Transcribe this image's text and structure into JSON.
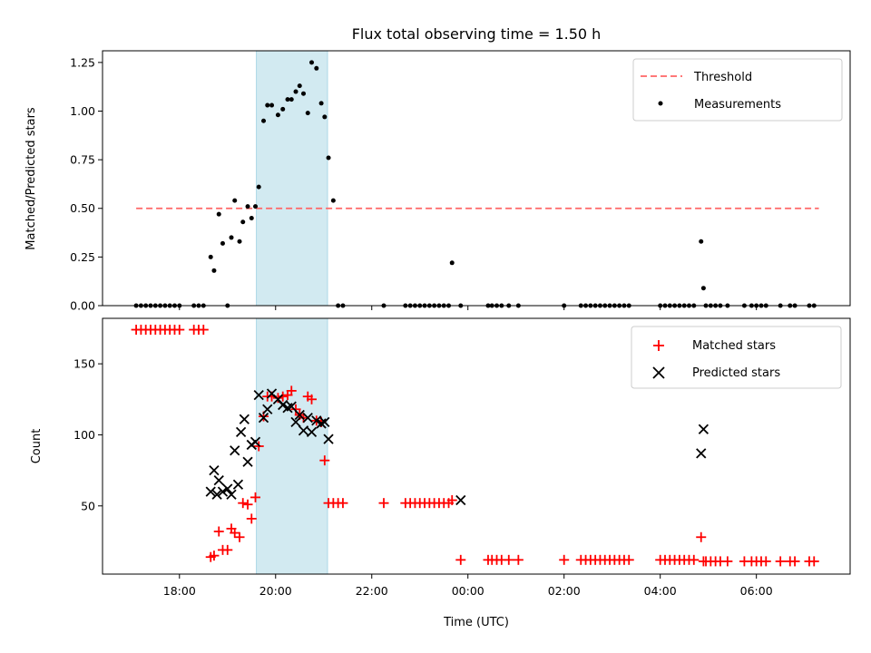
{
  "chart_data": [
    {
      "type": "scatter",
      "title": "Flux total observing time = 1.50 h",
      "xlabel": "",
      "ylabel": "Matched/Predicted stars",
      "xlim": [
        16.4,
        31.95
      ],
      "ylim": [
        0,
        1.31
      ],
      "yticks": [
        0.0,
        0.25,
        0.5,
        0.75,
        1.0,
        1.25
      ],
      "ytick_labels": [
        "0.00",
        "0.25",
        "0.50",
        "0.75",
        "1.00",
        "1.25"
      ],
      "shaded_interval": [
        19.6,
        21.08
      ],
      "shade_color": "#add8e6",
      "legend": "top-right",
      "threshold": {
        "name": "Threshold",
        "value": 0.5,
        "x_range": [
          17.1,
          31.3
        ],
        "color": "#ff6666"
      },
      "series": [
        {
          "name": "Measurements",
          "marker": "dot",
          "color": "#000000",
          "x": [
            17.1,
            17.2,
            17.3,
            17.4,
            17.5,
            17.6,
            17.7,
            17.8,
            17.9,
            18.0,
            18.3,
            18.4,
            18.5,
            18.65,
            18.72,
            18.82,
            18.9,
            19.0,
            19.08,
            19.15,
            19.25,
            19.32,
            19.42,
            19.5,
            19.58,
            19.65,
            19.75,
            19.83,
            19.92,
            20.05,
            20.15,
            20.25,
            20.33,
            20.42,
            20.5,
            20.58,
            20.67,
            20.75,
            20.85,
            20.95,
            21.02,
            21.1,
            21.2,
            21.3,
            21.4,
            22.25,
            22.7,
            22.8,
            22.9,
            23.0,
            23.1,
            23.2,
            23.3,
            23.4,
            23.5,
            23.6,
            23.67,
            23.85,
            24.42,
            24.5,
            24.6,
            24.7,
            24.85,
            25.05,
            26.0,
            26.35,
            26.45,
            26.55,
            26.65,
            26.75,
            26.85,
            26.95,
            27.05,
            27.15,
            27.25,
            27.35,
            28.0,
            28.1,
            28.2,
            28.3,
            28.4,
            28.5,
            28.6,
            28.7,
            28.85,
            28.9,
            28.95,
            29.05,
            29.15,
            29.25,
            29.4,
            29.75,
            29.9,
            30.0,
            30.1,
            30.2,
            30.5,
            30.7,
            30.8,
            31.1,
            31.2
          ],
          "y": [
            0,
            0,
            0,
            0,
            0,
            0,
            0,
            0,
            0,
            0,
            0,
            0,
            0,
            0.25,
            0.18,
            0.47,
            0.32,
            0,
            0.35,
            0.54,
            0.33,
            0.43,
            0.51,
            0.45,
            0.51,
            0.61,
            0.95,
            1.03,
            1.03,
            0.98,
            1.01,
            1.06,
            1.06,
            1.1,
            1.13,
            1.09,
            0.99,
            1.25,
            1.22,
            1.04,
            0.97,
            0.76,
            0.54,
            0,
            0,
            0,
            0,
            0,
            0,
            0,
            0,
            0,
            0,
            0,
            0,
            0,
            0.22,
            0,
            0,
            0,
            0,
            0,
            0,
            0,
            0,
            0,
            0,
            0,
            0,
            0,
            0,
            0,
            0,
            0,
            0,
            0,
            0,
            0,
            0,
            0,
            0,
            0,
            0,
            0,
            0.33,
            0.09,
            0,
            0,
            0,
            0,
            0,
            0,
            0,
            0,
            0,
            0,
            0,
            0,
            0,
            0,
            0
          ]
        }
      ]
    },
    {
      "type": "scatter",
      "title": "",
      "xlabel": "Time (UTC)",
      "ylabel": "Count",
      "xlim": [
        16.4,
        31.95
      ],
      "ylim": [
        2,
        182
      ],
      "yticks": [
        50,
        100,
        150
      ],
      "ytick_labels": [
        "50",
        "100",
        "150"
      ],
      "xticks": [
        18,
        20,
        22,
        24,
        26,
        28,
        30
      ],
      "xtick_labels": [
        "18:00",
        "20:00",
        "22:00",
        "00:00",
        "02:00",
        "04:00",
        "06:00"
      ],
      "shaded_interval": [
        19.6,
        21.08
      ],
      "shade_color": "#add8e6",
      "legend": "top-right",
      "series": [
        {
          "name": "Matched stars",
          "marker": "plus",
          "color": "#ff0000",
          "x": [
            17.1,
            17.2,
            17.3,
            17.4,
            17.5,
            17.6,
            17.7,
            17.8,
            17.9,
            18.0,
            18.3,
            18.4,
            18.5,
            18.65,
            18.72,
            18.82,
            18.9,
            19.0,
            19.08,
            19.15,
            19.25,
            19.32,
            19.42,
            19.5,
            19.58,
            19.65,
            19.75,
            19.83,
            19.92,
            20.05,
            20.15,
            20.25,
            20.33,
            20.42,
            20.5,
            20.58,
            20.67,
            20.75,
            20.85,
            20.95,
            21.02,
            21.1,
            21.2,
            21.3,
            21.4,
            22.25,
            22.7,
            22.8,
            22.9,
            23.0,
            23.1,
            23.2,
            23.3,
            23.4,
            23.5,
            23.6,
            23.67,
            23.85,
            24.42,
            24.5,
            24.6,
            24.7,
            24.85,
            25.05,
            26.0,
            26.35,
            26.45,
            26.55,
            26.65,
            26.75,
            26.85,
            26.95,
            27.05,
            27.15,
            27.25,
            27.35,
            28.0,
            28.1,
            28.2,
            28.3,
            28.4,
            28.5,
            28.6,
            28.7,
            28.85,
            28.9,
            28.95,
            29.05,
            29.15,
            29.25,
            29.4,
            29.75,
            29.9,
            30.0,
            30.1,
            30.2,
            30.5,
            30.7,
            30.8,
            31.1,
            31.2
          ],
          "y": [
            174,
            174,
            174,
            174,
            174,
            174,
            174,
            174,
            174,
            174,
            174,
            174,
            174,
            14,
            15,
            32,
            19,
            19,
            34,
            31,
            28,
            52,
            51,
            41,
            56,
            92,
            113,
            127,
            127,
            126,
            127,
            128,
            131,
            118,
            114,
            112,
            127,
            125,
            110,
            109,
            82,
            52,
            52,
            52,
            52,
            52,
            52,
            52,
            52,
            52,
            52,
            52,
            52,
            52,
            52,
            52,
            54,
            12,
            12,
            12,
            12,
            12,
            12,
            12,
            12,
            12,
            12,
            12,
            12,
            12,
            12,
            12,
            12,
            12,
            12,
            12,
            12,
            12,
            12,
            12,
            12,
            12,
            12,
            12,
            28,
            11,
            11,
            11,
            11,
            11,
            11,
            11,
            11,
            11,
            11,
            11,
            11,
            11,
            11,
            11,
            11
          ]
        },
        {
          "name": "Predicted stars",
          "marker": "x",
          "color": "#000000",
          "x": [
            18.65,
            18.72,
            18.78,
            18.82,
            18.9,
            19.0,
            19.08,
            19.15,
            19.22,
            19.28,
            19.35,
            19.42,
            19.5,
            19.58,
            19.65,
            19.75,
            19.83,
            19.92,
            20.05,
            20.15,
            20.25,
            20.33,
            20.42,
            20.5,
            20.58,
            20.67,
            20.75,
            20.85,
            20.95,
            21.02,
            21.1,
            23.85,
            28.85,
            28.9
          ],
          "y": [
            60,
            75,
            58,
            68,
            60,
            62,
            58,
            89,
            65,
            102,
            111,
            81,
            93,
            95,
            128,
            112,
            118,
            129,
            125,
            121,
            119,
            120,
            109,
            114,
            103,
            112,
            102,
            110,
            108,
            109,
            97,
            54,
            87,
            104
          ]
        }
      ]
    }
  ]
}
